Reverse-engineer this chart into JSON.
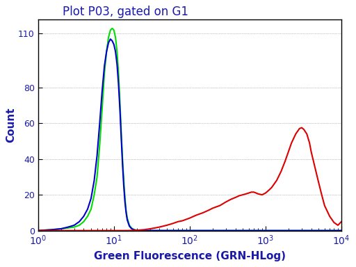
{
  "title": "Plot P03, gated on G1",
  "xlabel": "Green Fluorescence (GRN-HLog)",
  "ylabel": "Count",
  "xlim_log": [
    1.0,
    10000.0
  ],
  "ylim": [
    0,
    118
  ],
  "yticks": [
    0,
    20,
    40,
    60,
    80,
    110
  ],
  "background_color": "#ffffff",
  "title_color": "#1a1aaa",
  "axis_label_color": "#1a1aaa",
  "tick_label_color": "#1a1aaa",
  "spine_color": "#000000",
  "green_curve": {
    "color": "#00dd00",
    "x": [
      1.0,
      1.5,
      2.0,
      2.5,
      3.0,
      3.5,
      4.0,
      4.5,
      5.0,
      5.5,
      6.0,
      6.5,
      7.0,
      7.5,
      8.0,
      8.5,
      9.0,
      9.5,
      10.0,
      10.5,
      11.0,
      11.5,
      12.0,
      12.5,
      13.0,
      13.5,
      14.0,
      14.5,
      15.0,
      16.0,
      17.0,
      18.0,
      19.0,
      20.0,
      22.0,
      25.0,
      28.0,
      32.0,
      38.0,
      45.0,
      55.0,
      70.0,
      100.0,
      200.0,
      500.0,
      1000.0,
      10000.0
    ],
    "y": [
      0,
      0.5,
      1,
      1.5,
      2,
      3,
      5,
      8,
      12,
      20,
      30,
      48,
      68,
      88,
      100,
      108,
      112,
      113,
      112,
      108,
      100,
      88,
      72,
      55,
      40,
      28,
      18,
      11,
      7,
      3,
      1.5,
      0.8,
      0.4,
      0.2,
      0.1,
      0.05,
      0,
      0,
      0,
      0,
      0,
      0,
      0,
      0,
      0,
      0,
      0
    ]
  },
  "blue_curve": {
    "color": "#0000cc",
    "x": [
      1.0,
      1.5,
      2.0,
      2.5,
      3.0,
      3.5,
      4.0,
      4.5,
      5.0,
      5.5,
      6.0,
      6.5,
      7.0,
      7.5,
      8.0,
      8.5,
      9.0,
      9.5,
      10.0,
      10.5,
      11.0,
      11.5,
      12.0,
      12.5,
      13.0,
      13.5,
      14.0,
      14.5,
      15.0,
      16.0,
      17.0,
      18.0,
      19.0,
      20.0,
      22.0,
      25.0,
      28.0,
      32.0,
      38.0,
      45.0,
      55.0,
      70.0,
      100.0,
      200.0,
      500.0,
      1000.0,
      10000.0
    ],
    "y": [
      0,
      0.5,
      1,
      2,
      3,
      5,
      8,
      12,
      18,
      28,
      42,
      60,
      78,
      92,
      100,
      105,
      107,
      106,
      104,
      100,
      93,
      82,
      68,
      52,
      37,
      25,
      16,
      10,
      6,
      2.5,
      1.2,
      0.6,
      0.3,
      0.15,
      0.05,
      0,
      0,
      0,
      0,
      0,
      0,
      0,
      0,
      0,
      0,
      0,
      0
    ]
  },
  "red_curve": {
    "color": "#dd0000",
    "x": [
      1.0,
      5.0,
      10.0,
      15.0,
      20.0,
      25.0,
      30.0,
      35.0,
      40.0,
      50.0,
      60.0,
      70.0,
      80.0,
      100.0,
      120.0,
      150.0,
      180.0,
      200.0,
      250.0,
      300.0,
      350.0,
      400.0,
      450.0,
      500.0,
      550.0,
      600.0,
      650.0,
      700.0,
      750.0,
      800.0,
      900.0,
      1000.0,
      1100.0,
      1200.0,
      1400.0,
      1600.0,
      1800.0,
      2000.0,
      2200.0,
      2500.0,
      2800.0,
      3000.0,
      3200.0,
      3500.0,
      3800.0,
      4000.0,
      4500.0,
      5000.0,
      5500.0,
      6000.0,
      7000.0,
      8000.0,
      9000.0,
      10000.0
    ],
    "y": [
      0,
      0,
      0,
      0,
      0.2,
      0.5,
      1.0,
      1.5,
      2.0,
      3.0,
      4.0,
      5.0,
      5.5,
      7.0,
      8.5,
      10.0,
      11.5,
      12.5,
      14.0,
      16.0,
      17.5,
      18.5,
      19.5,
      20.0,
      20.5,
      21.0,
      21.5,
      21.5,
      21.0,
      20.5,
      20.0,
      21.0,
      22.5,
      24.0,
      28.0,
      33.0,
      38.5,
      44.0,
      49.0,
      54.0,
      57.0,
      57.5,
      56.5,
      54.0,
      49.0,
      44.0,
      35.0,
      27.0,
      20.0,
      14.0,
      8.0,
      4.5,
      3.0,
      5.0
    ]
  },
  "linewidth": 1.5,
  "figsize": [
    5.12,
    3.84
  ],
  "dpi": 100
}
